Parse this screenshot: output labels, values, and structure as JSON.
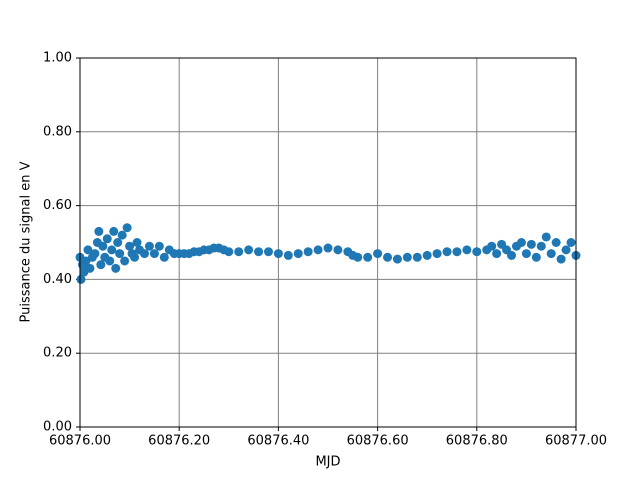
{
  "chart_data": {
    "type": "scatter",
    "xlabel": "MJD",
    "ylabel": "Puissance du signal en V",
    "color": "#1f77b4",
    "grid": true,
    "xlim": [
      60876.0,
      60877.0
    ],
    "xticks": [
      {
        "value": 60876.0,
        "label": "60876.00"
      },
      {
        "value": 60876.2,
        "label": "60876.20"
      },
      {
        "value": 60876.4,
        "label": "60876.40"
      },
      {
        "value": 60876.6,
        "label": "60876.60"
      },
      {
        "value": 60876.8,
        "label": "60876.80"
      },
      {
        "value": 60877.0,
        "label": "60877.00"
      }
    ],
    "ylim": [
      0,
      1
    ],
    "yticks": [
      {
        "value": 0,
        "label": "0.00"
      },
      {
        "value": 0.2,
        "label": "0.20"
      },
      {
        "value": 0.4,
        "label": "0.40"
      },
      {
        "value": 0.6,
        "label": "0.60"
      },
      {
        "value": 0.8,
        "label": "0.80"
      },
      {
        "value": 1,
        "label": "1.00"
      }
    ],
    "x": [
      60876.0,
      60876.002,
      60876.005,
      60876.008,
      60876.012,
      60876.016,
      60876.02,
      60876.025,
      60876.03,
      60876.035,
      60876.038,
      60876.042,
      60876.046,
      60876.05,
      60876.055,
      60876.06,
      60876.064,
      60876.068,
      60876.072,
      60876.076,
      60876.08,
      60876.085,
      60876.09,
      60876.095,
      60876.1,
      60876.105,
      60876.11,
      60876.115,
      60876.12,
      60876.13,
      60876.14,
      60876.15,
      60876.16,
      60876.17,
      60876.18,
      60876.19,
      60876.2,
      60876.21,
      60876.22,
      60876.23,
      60876.24,
      60876.25,
      60876.26,
      60876.27,
      60876.28,
      60876.29,
      60876.3,
      60876.32,
      60876.34,
      60876.36,
      60876.38,
      60876.4,
      60876.42,
      60876.44,
      60876.46,
      60876.48,
      60876.5,
      60876.52,
      60876.54,
      60876.55,
      60876.56,
      60876.58,
      60876.6,
      60876.62,
      60876.64,
      60876.66,
      60876.68,
      60876.7,
      60876.72,
      60876.74,
      60876.76,
      60876.78,
      60876.8,
      60876.82,
      60876.83,
      60876.84,
      60876.85,
      60876.86,
      60876.87,
      60876.88,
      60876.89,
      60876.9,
      60876.91,
      60876.92,
      60876.93,
      60876.94,
      60876.95,
      60876.96,
      60876.97,
      60876.98,
      60876.99,
      60877.0
    ],
    "values": [
      0.46,
      0.4,
      0.44,
      0.42,
      0.45,
      0.48,
      0.43,
      0.46,
      0.47,
      0.5,
      0.53,
      0.44,
      0.49,
      0.46,
      0.51,
      0.45,
      0.48,
      0.53,
      0.43,
      0.5,
      0.47,
      0.52,
      0.45,
      0.54,
      0.49,
      0.47,
      0.46,
      0.5,
      0.48,
      0.47,
      0.49,
      0.47,
      0.49,
      0.46,
      0.48,
      0.47,
      0.47,
      0.47,
      0.47,
      0.475,
      0.475,
      0.48,
      0.48,
      0.485,
      0.485,
      0.48,
      0.475,
      0.475,
      0.48,
      0.475,
      0.475,
      0.47,
      0.465,
      0.47,
      0.475,
      0.48,
      0.485,
      0.48,
      0.475,
      0.465,
      0.46,
      0.46,
      0.47,
      0.46,
      0.455,
      0.46,
      0.46,
      0.465,
      0.47,
      0.475,
      0.475,
      0.48,
      0.475,
      0.48,
      0.49,
      0.47,
      0.495,
      0.48,
      0.465,
      0.49,
      0.5,
      0.47,
      0.495,
      0.46,
      0.49,
      0.515,
      0.47,
      0.5,
      0.455,
      0.48,
      0.5,
      0.465
    ]
  }
}
